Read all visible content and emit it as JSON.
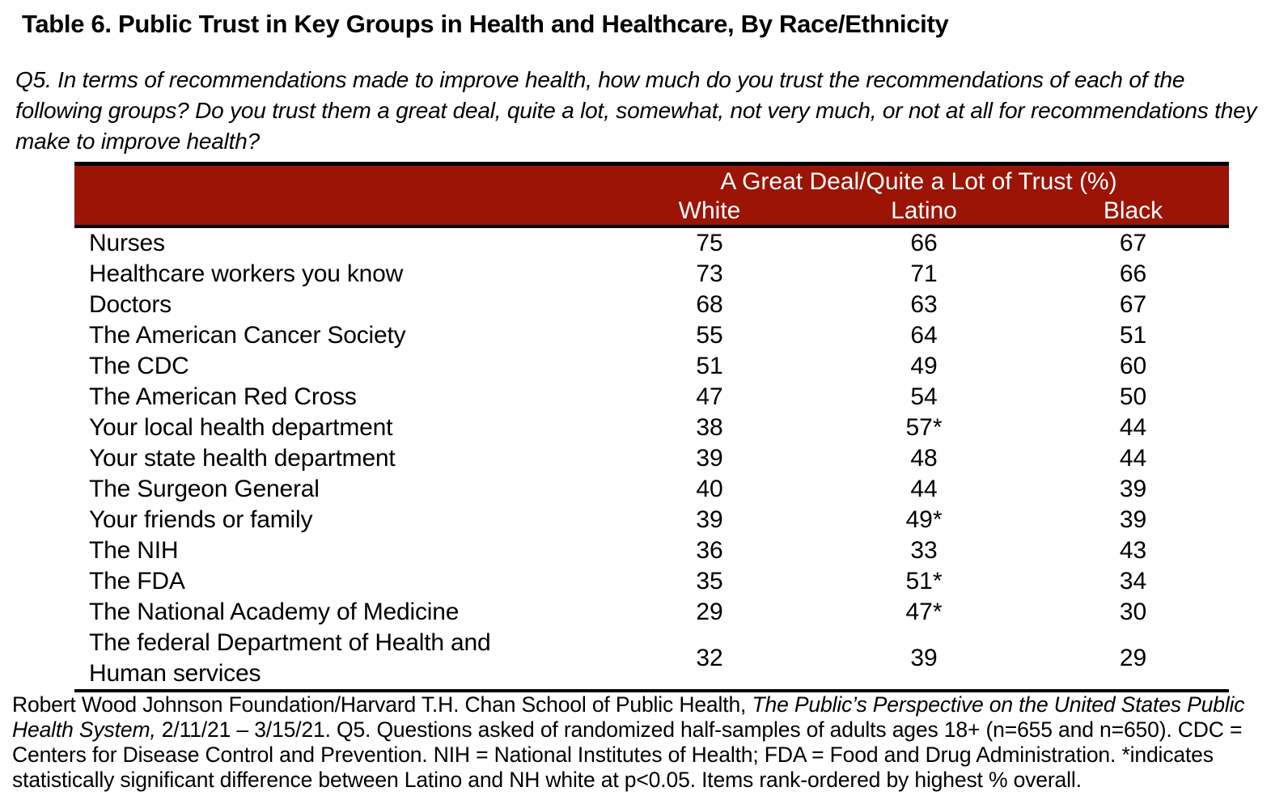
{
  "title": "Table 6. Public Trust in Key Groups in Health and Healthcare, By Race/Ethnicity",
  "question": "Q5. In terms of recommendations made to improve health, how much do you trust the recommendations of each of the following groups? Do you trust them a great deal, quite a lot, somewhat, not very much, or not at all for recommendations they make to improve health?",
  "table": {
    "header_bg": "#9B1406",
    "group_header": "A Great Deal/Quite a Lot of Trust (%)",
    "columns": {
      "white": "White",
      "latino": "Latino",
      "black": "Black"
    },
    "rows": [
      {
        "label": "Nurses",
        "white": "75",
        "latino": "66",
        "black": "67"
      },
      {
        "label": "Healthcare workers you know",
        "white": "73",
        "latino": "71",
        "black": "66"
      },
      {
        "label": "Doctors",
        "white": "68",
        "latino": "63",
        "black": "67"
      },
      {
        "label": "The American Cancer Society",
        "white": "55",
        "latino": "64",
        "black": "51"
      },
      {
        "label": "The CDC",
        "white": "51",
        "latino": "49",
        "black": "60"
      },
      {
        "label": "The American Red Cross",
        "white": "47",
        "latino": "54",
        "black": "50"
      },
      {
        "label": "Your local health department",
        "white": "38",
        "latino": "57*",
        "black": "44"
      },
      {
        "label": "Your state health department",
        "white": "39",
        "latino": "48",
        "black": "44"
      },
      {
        "label": "The Surgeon General",
        "white": "40",
        "latino": "44",
        "black": "39"
      },
      {
        "label": "Your friends or family",
        "white": "39",
        "latino": "49*",
        "black": "39"
      },
      {
        "label": "The NIH",
        "white": "36",
        "latino": "33",
        "black": "43"
      },
      {
        "label": "The FDA",
        "white": "35",
        "latino": "51*",
        "black": "34"
      },
      {
        "label": "The National Academy of Medicine",
        "white": "29",
        "latino": "47*",
        "black": "30"
      },
      {
        "label": "The federal Department of Health and\nHuman services",
        "white": "32",
        "latino": "39",
        "black": "29",
        "tall": true
      }
    ]
  },
  "footnote": {
    "part1": "Robert Wood Johnson Foundation/Harvard T.H. Chan School of Public Health, ",
    "italic_title": "The Public’s Perspective on the United States Public Health System,",
    "part2": " 2/11/21 – 3/15/21. Q5. Questions asked of randomized half-samples of adults ages 18+ (n=655 and n=650). CDC = Centers for Disease Control and Prevention. NIH = National Institutes of Health; FDA = Food and Drug Administration. *indicates statistically significant difference between Latino and NH white at p<0.05. Items rank-ordered by highest % overall."
  }
}
